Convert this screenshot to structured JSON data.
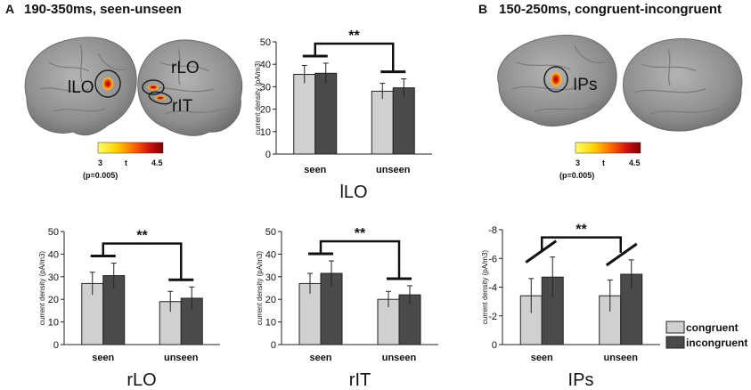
{
  "panels": {
    "a": {
      "letter": "A",
      "title": "190-350ms, seen-unseen"
    },
    "b": {
      "letter": "B",
      "title": "150-250ms, congruent-incongruent"
    }
  },
  "brains": {
    "a_left_label": "lLO",
    "a_right_labels": [
      "rLO",
      "rIT"
    ],
    "b_left_label": "IPs"
  },
  "colorbars": [
    {
      "min": "3",
      "mid": "t",
      "max": "4.5",
      "p": "(p=0.005)"
    },
    {
      "min": "3",
      "mid": "t",
      "max": "4.5",
      "p": "(p=0.005)"
    }
  ],
  "legend": {
    "items": [
      "congruent",
      "incongruent"
    ],
    "colors": [
      "#d0d0d0",
      "#4a4a4a"
    ]
  },
  "colors": {
    "congruent": "#d0d0d0",
    "incongruent": "#4a4a4a",
    "bar_stroke": "#222222"
  },
  "chart_data": [
    {
      "type": "bar",
      "name": "lLO",
      "title": "lLO",
      "ylabel": "current density (pA/m3)",
      "categories": [
        "seen",
        "unseen"
      ],
      "ylim": [
        0,
        50
      ],
      "yticks": [
        0,
        10,
        20,
        30,
        40,
        50
      ],
      "reversed": false,
      "series": [
        {
          "name": "congruent",
          "values": [
            35.5,
            28.0
          ],
          "errors": [
            4.0,
            3.5
          ]
        },
        {
          "name": "incongruent",
          "values": [
            36.0,
            29.5
          ],
          "errors": [
            4.5,
            4.0
          ]
        }
      ],
      "significance": "**"
    },
    {
      "type": "bar",
      "name": "rLO",
      "title": "rLO",
      "ylabel": "current density (pA/m3)",
      "categories": [
        "seen",
        "unseen"
      ],
      "ylim": [
        0,
        50
      ],
      "yticks": [
        0,
        10,
        20,
        30,
        40,
        50
      ],
      "reversed": false,
      "series": [
        {
          "name": "congruent",
          "values": [
            27.0,
            19.0
          ],
          "errors": [
            5.0,
            4.5
          ]
        },
        {
          "name": "incongruent",
          "values": [
            30.5,
            20.5
          ],
          "errors": [
            5.5,
            5.0
          ]
        }
      ],
      "significance": "**"
    },
    {
      "type": "bar",
      "name": "rIT",
      "title": "rIT",
      "ylabel": "current density (pA/m3)",
      "categories": [
        "seen",
        "unseen"
      ],
      "ylim": [
        0,
        50
      ],
      "yticks": [
        0,
        10,
        20,
        30,
        40,
        50
      ],
      "reversed": false,
      "series": [
        {
          "name": "congruent",
          "values": [
            27.0,
            20.0
          ],
          "errors": [
            4.5,
            3.5
          ]
        },
        {
          "name": "incongruent",
          "values": [
            31.5,
            22.0
          ],
          "errors": [
            5.5,
            4.0
          ]
        }
      ],
      "significance": "**"
    },
    {
      "type": "bar",
      "name": "IPs",
      "title": "IPs",
      "ylabel": "current density (pA/m3)",
      "categories": [
        "seen",
        "unseen"
      ],
      "ylim": [
        0,
        -8
      ],
      "yticks": [
        0,
        -2,
        -4,
        -6,
        -8
      ],
      "reversed": true,
      "series": [
        {
          "name": "congruent",
          "values": [
            -3.4,
            -3.4
          ],
          "errors": [
            1.2,
            1.1
          ]
        },
        {
          "name": "incongruent",
          "values": [
            -4.7,
            -4.9
          ],
          "errors": [
            1.4,
            1.0
          ]
        }
      ],
      "significance": "**"
    }
  ]
}
